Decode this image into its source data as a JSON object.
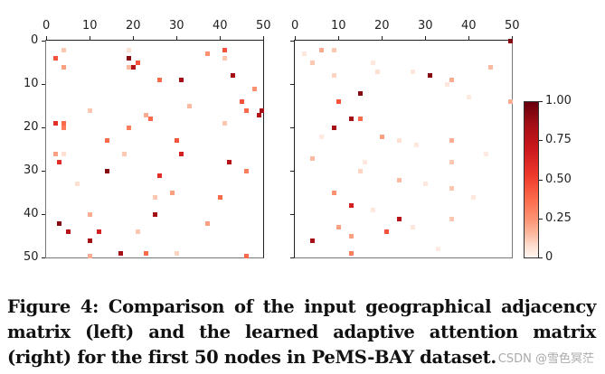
{
  "caption": {
    "text": "Figure 4: Comparison of the input geographical adjacency matrix (left) and the learned adaptive attention matrix (right) for the first 50 nodes in PeMS-BAY dataset."
  },
  "watermark": "CSDN @雪色冥茫",
  "colorbar": {
    "ticks": [
      {
        "label": "1.00",
        "value": 1.0
      },
      {
        "label": "0.75",
        "value": 0.75
      },
      {
        "label": "0.50",
        "value": 0.5
      },
      {
        "label": "0.25",
        "value": 0.25
      },
      {
        "label": "0",
        "value": 0
      }
    ]
  },
  "axes": {
    "xticks": [
      "0",
      "10",
      "20",
      "30",
      "40",
      "50"
    ],
    "yticks": [
      "0",
      "10",
      "20",
      "30",
      "40",
      "50"
    ]
  },
  "chart_data": [
    {
      "type": "heatmap",
      "title": "Input geographical adjacency matrix (left)",
      "xlabel": "",
      "ylabel": "",
      "xlim": [
        0,
        50
      ],
      "ylim": [
        50,
        0
      ],
      "colormap": "Reds",
      "vmin": 0,
      "vmax": 1,
      "cells": [
        [
          2,
          4,
          0.6
        ],
        [
          4,
          2,
          0.25
        ],
        [
          4,
          6,
          0.4
        ],
        [
          19,
          2,
          0.15
        ],
        [
          19,
          4,
          0.95
        ],
        [
          19,
          6,
          0.3
        ],
        [
          20,
          6,
          0.85
        ],
        [
          21,
          5,
          0.6
        ],
        [
          41,
          2,
          0.6
        ],
        [
          41,
          4,
          0.25
        ],
        [
          37,
          3,
          0.45
        ],
        [
          43,
          8,
          0.9
        ],
        [
          26,
          9,
          0.55
        ],
        [
          31,
          9,
          0.9
        ],
        [
          48,
          11,
          0.45
        ],
        [
          45,
          14,
          0.6
        ],
        [
          33,
          15,
          0.3
        ],
        [
          10,
          16,
          0.25
        ],
        [
          46,
          16,
          0.55
        ],
        [
          50,
          16,
          0.9
        ],
        [
          49,
          17,
          0.85
        ],
        [
          23,
          17,
          0.35
        ],
        [
          24,
          18,
          0.55
        ],
        [
          2,
          19,
          0.7
        ],
        [
          4,
          19,
          0.55
        ],
        [
          4,
          20,
          0.5
        ],
        [
          19,
          20,
          0.5
        ],
        [
          41,
          19,
          0.25
        ],
        [
          14,
          23,
          0.55
        ],
        [
          30,
          23,
          0.6
        ],
        [
          2,
          26,
          0.4
        ],
        [
          4,
          26,
          0.15
        ],
        [
          18,
          26,
          0.25
        ],
        [
          31,
          26,
          0.75
        ],
        [
          3,
          28,
          0.7
        ],
        [
          42,
          28,
          0.85
        ],
        [
          14,
          30,
          0.95
        ],
        [
          46,
          30,
          0.5
        ],
        [
          26,
          31,
          0.7
        ],
        [
          7,
          33,
          0.15
        ],
        [
          29,
          35,
          0.4
        ],
        [
          25,
          36,
          0.25
        ],
        [
          40,
          36,
          0.55
        ],
        [
          10,
          40,
          0.35
        ],
        [
          25,
          40,
          0.9
        ],
        [
          3,
          42,
          0.95
        ],
        [
          37,
          42,
          0.4
        ],
        [
          5,
          44,
          0.85
        ],
        [
          12,
          44,
          0.75
        ],
        [
          21,
          44,
          0.25
        ],
        [
          10,
          46,
          0.9
        ],
        [
          17,
          49,
          0.9
        ],
        [
          23,
          49,
          0.55
        ],
        [
          30,
          49,
          0.2
        ],
        [
          10,
          50,
          0.35
        ],
        [
          46,
          50,
          0.55
        ]
      ]
    },
    {
      "type": "heatmap",
      "title": "Learned adaptive attention matrix (right)",
      "xlabel": "",
      "ylabel": "",
      "xlim": [
        0,
        50
      ],
      "ylim": [
        50,
        0
      ],
      "colormap": "Reds",
      "vmin": 0,
      "vmax": 1,
      "cells": [
        [
          50,
          0,
          0.95
        ],
        [
          6,
          2,
          0.35
        ],
        [
          9,
          2,
          0.25
        ],
        [
          4,
          5,
          0.25
        ],
        [
          45,
          6,
          0.3
        ],
        [
          31,
          8,
          0.95
        ],
        [
          9,
          8,
          0.2
        ],
        [
          19,
          7,
          0.15
        ],
        [
          36,
          9,
          0.35
        ],
        [
          15,
          12,
          0.95
        ],
        [
          10,
          14,
          0.6
        ],
        [
          50,
          14,
          0.35
        ],
        [
          13,
          18,
          0.9
        ],
        [
          15,
          18,
          0.55
        ],
        [
          9,
          20,
          0.9
        ],
        [
          20,
          22,
          0.4
        ],
        [
          24,
          23,
          0.15
        ],
        [
          36,
          23,
          0.35
        ],
        [
          4,
          27,
          0.3
        ],
        [
          36,
          28,
          0.25
        ],
        [
          15,
          30,
          0.2
        ],
        [
          24,
          32,
          0.3
        ],
        [
          9,
          35,
          0.45
        ],
        [
          36,
          34,
          0.25
        ],
        [
          13,
          38,
          0.75
        ],
        [
          24,
          41,
          0.85
        ],
        [
          36,
          41,
          0.25
        ],
        [
          10,
          43,
          0.4
        ],
        [
          21,
          44,
          0.6
        ],
        [
          13,
          45,
          0.4
        ],
        [
          4,
          46,
          0.9
        ],
        [
          13,
          49,
          0.5
        ],
        [
          2,
          3,
          0.1
        ],
        [
          18,
          5,
          0.1
        ],
        [
          27,
          7,
          0.1
        ],
        [
          35,
          10,
          0.1
        ],
        [
          40,
          13,
          0.08
        ],
        [
          6,
          22,
          0.08
        ],
        [
          28,
          24,
          0.1
        ],
        [
          44,
          26,
          0.08
        ],
        [
          16,
          28,
          0.1
        ],
        [
          30,
          33,
          0.1
        ],
        [
          41,
          36,
          0.1
        ],
        [
          18,
          39,
          0.1
        ],
        [
          27,
          43,
          0.1
        ],
        [
          33,
          48,
          0.08
        ]
      ]
    }
  ]
}
